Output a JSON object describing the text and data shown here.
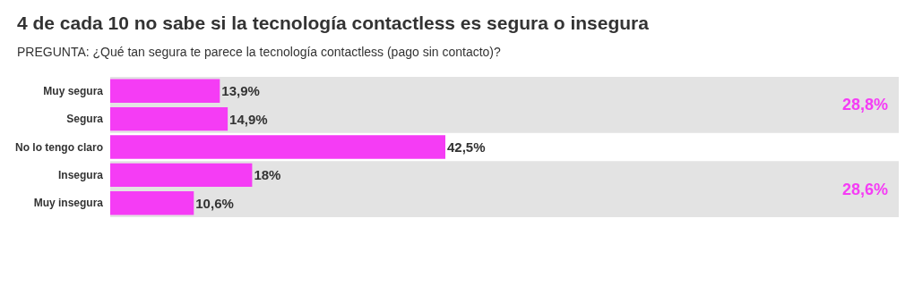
{
  "chart_data": {
    "type": "bar",
    "orientation": "horizontal",
    "title": "4 de cada 10 no sabe si la tecnología contactless es segura o insegura",
    "subtitle": "PREGUNTA: ¿Qué tan segura te parece la tecnología contactless (pago sin contacto)?",
    "categories": [
      "Muy segura",
      "Segura",
      "No lo tengo claro",
      "Insegura",
      "Muy insegura"
    ],
    "values": [
      13.9,
      14.9,
      42.5,
      18,
      10.6
    ],
    "value_labels": [
      "13,9%",
      "14,9%",
      "42,5%",
      "18%",
      "10,6%"
    ],
    "color": "#f53cf5",
    "xlim": [
      0,
      100
    ],
    "tick_labels": "y",
    "grid": false,
    "bands": [
      {
        "axis": "y",
        "from": "Muy segura",
        "to": "Segura",
        "label": "28,8%",
        "color": "#e3e3e3"
      },
      {
        "axis": "y",
        "from": "Insegura",
        "to": "Muy insegura",
        "label": "28,6%",
        "color": "#e3e3e3"
      }
    ]
  }
}
